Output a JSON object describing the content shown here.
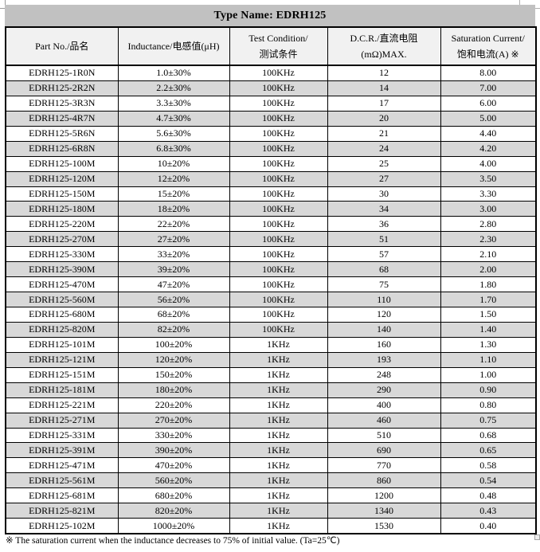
{
  "page": {
    "title": "Type Name: EDRH125",
    "footnote": "※  The saturation current when the inductance decreases to 75% of initial value. (Ta=25℃)"
  },
  "colors": {
    "title_band": "#c1c1c1",
    "header_bg": "#f1f1f1",
    "shaded_row_bg": "#d8d8d8",
    "border": "#000000"
  },
  "table": {
    "columns": [
      {
        "line1": "Part No./品名",
        "line2": ""
      },
      {
        "line1": "Inductance/电感值(μH)",
        "line2": ""
      },
      {
        "line1": "Test Condition/",
        "line2": "测试条件"
      },
      {
        "line1": "D.C.R./直流电阻",
        "line2": "(mΩ)MAX."
      },
      {
        "line1": "Saturation Current/",
        "line2": "饱和电流(A)  ※"
      }
    ],
    "rows": [
      [
        "EDRH125-1R0N",
        "1.0±30%",
        "100KHz",
        "12",
        "8.00"
      ],
      [
        "EDRH125-2R2N",
        "2.2±30%",
        "100KHz",
        "14",
        "7.00"
      ],
      [
        "EDRH125-3R3N",
        "3.3±30%",
        "100KHz",
        "17",
        "6.00"
      ],
      [
        "EDRH125-4R7N",
        "4.7±30%",
        "100KHz",
        "20",
        "5.00"
      ],
      [
        "EDRH125-5R6N",
        "5.6±30%",
        "100KHz",
        "21",
        "4.40"
      ],
      [
        "EDRH125-6R8N",
        "6.8±30%",
        "100KHz",
        "24",
        "4.20"
      ],
      [
        "EDRH125-100M",
        "10±20%",
        "100KHz",
        "25",
        "4.00"
      ],
      [
        "EDRH125-120M",
        "12±20%",
        "100KHz",
        "27",
        "3.50"
      ],
      [
        "EDRH125-150M",
        "15±20%",
        "100KHz",
        "30",
        "3.30"
      ],
      [
        "EDRH125-180M",
        "18±20%",
        "100KHz",
        "34",
        "3.00"
      ],
      [
        "EDRH125-220M",
        "22±20%",
        "100KHz",
        "36",
        "2.80"
      ],
      [
        "EDRH125-270M",
        "27±20%",
        "100KHz",
        "51",
        "2.30"
      ],
      [
        "EDRH125-330M",
        "33±20%",
        "100KHz",
        "57",
        "2.10"
      ],
      [
        "EDRH125-390M",
        "39±20%",
        "100KHz",
        "68",
        "2.00"
      ],
      [
        "EDRH125-470M",
        "47±20%",
        "100KHz",
        "75",
        "1.80"
      ],
      [
        "EDRH125-560M",
        "56±20%",
        "100KHz",
        "110",
        "1.70"
      ],
      [
        "EDRH125-680M",
        "68±20%",
        "100KHz",
        "120",
        "1.50"
      ],
      [
        "EDRH125-820M",
        "82±20%",
        "100KHz",
        "140",
        "1.40"
      ],
      [
        "EDRH125-101M",
        "100±20%",
        "1KHz",
        "160",
        "1.30"
      ],
      [
        "EDRH125-121M",
        "120±20%",
        "1KHz",
        "193",
        "1.10"
      ],
      [
        "EDRH125-151M",
        "150±20%",
        "1KHz",
        "248",
        "1.00"
      ],
      [
        "EDRH125-181M",
        "180±20%",
        "1KHz",
        "290",
        "0.90"
      ],
      [
        "EDRH125-221M",
        "220±20%",
        "1KHz",
        "400",
        "0.80"
      ],
      [
        "EDRH125-271M",
        "270±20%",
        "1KHz",
        "460",
        "0.75"
      ],
      [
        "EDRH125-331M",
        "330±20%",
        "1KHz",
        "510",
        "0.68"
      ],
      [
        "EDRH125-391M",
        "390±20%",
        "1KHz",
        "690",
        "0.65"
      ],
      [
        "EDRH125-471M",
        "470±20%",
        "1KHz",
        "770",
        "0.58"
      ],
      [
        "EDRH125-561M",
        "560±20%",
        "1KHz",
        "860",
        "0.54"
      ],
      [
        "EDRH125-681M",
        "680±20%",
        "1KHz",
        "1200",
        "0.48"
      ],
      [
        "EDRH125-821M",
        "820±20%",
        "1KHz",
        "1340",
        "0.43"
      ],
      [
        "EDRH125-102M",
        "1000±20%",
        "1KHz",
        "1530",
        "0.40"
      ]
    ],
    "cell_names": [
      "part-no-cell",
      "inductance-cell",
      "test-condition-cell",
      "dcr-cell",
      "saturation-current-cell"
    ]
  }
}
